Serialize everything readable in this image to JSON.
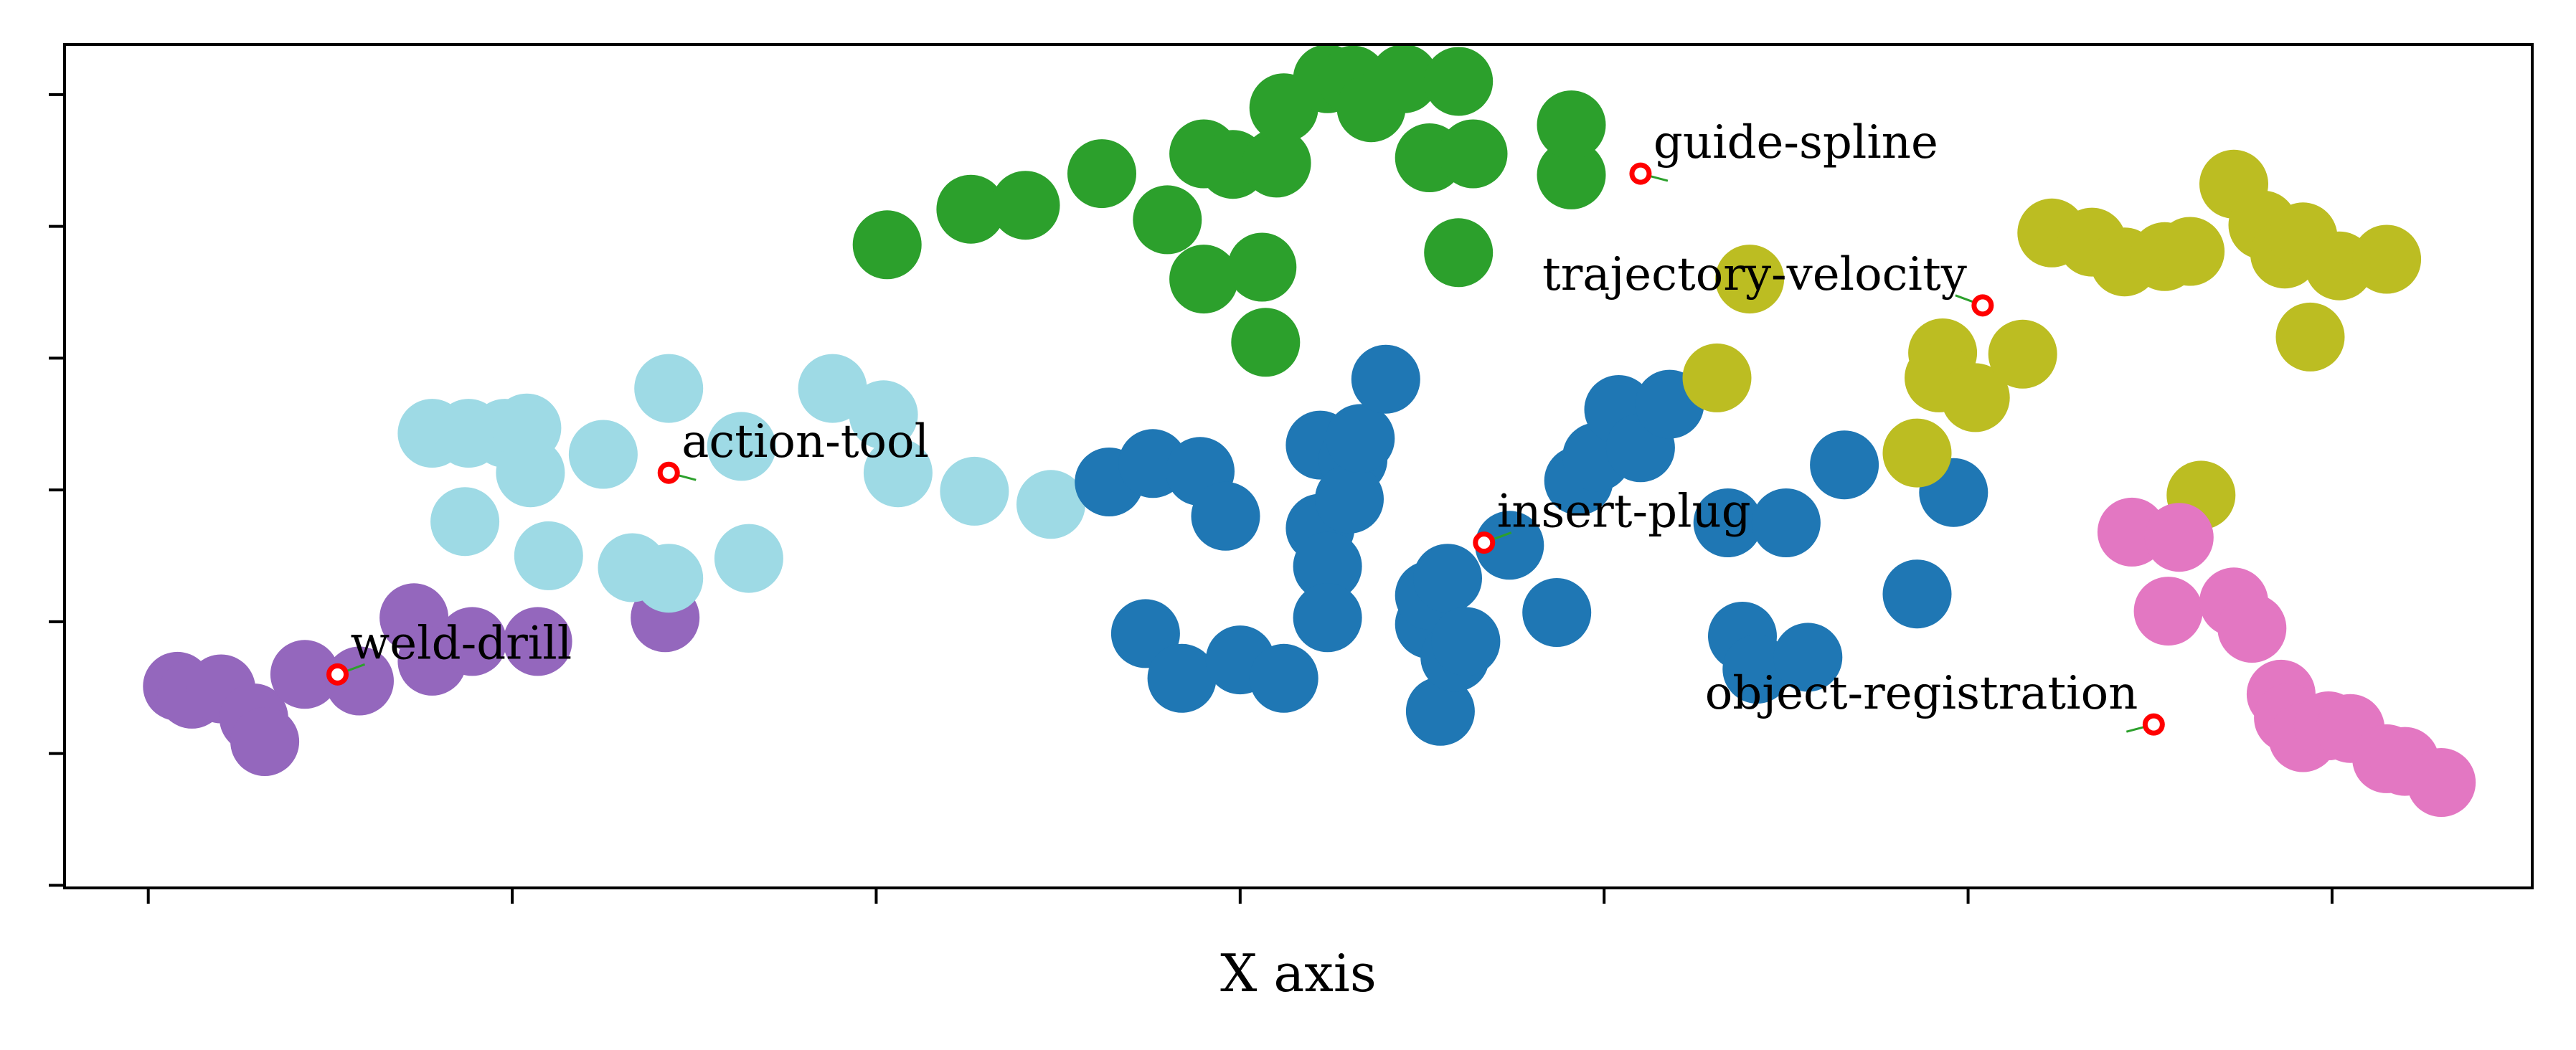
{
  "chart_data": {
    "type": "scatter",
    "title": "",
    "xlabel": "X axis",
    "ylabel": "",
    "xlim": [
      -0.23,
      6.55
    ],
    "ylim": [
      -0.02,
      6.38
    ],
    "x_ticks": [
      0,
      1,
      2,
      3,
      4,
      5,
      6
    ],
    "y_ticks": [
      0,
      1,
      2,
      3,
      4,
      5,
      6
    ],
    "tick_labels_shown": false,
    "grid": false,
    "legend": null,
    "series": [
      {
        "color": "#9467bd",
        "points": [
          [
            0.08,
            1.51
          ],
          [
            0.12,
            1.45
          ],
          [
            0.2,
            1.49
          ],
          [
            0.29,
            1.27
          ],
          [
            0.32,
            1.09
          ],
          [
            0.43,
            1.6
          ],
          [
            0.58,
            1.55
          ],
          [
            0.73,
            2.03
          ],
          [
            0.78,
            1.7
          ],
          [
            0.89,
            1.85
          ],
          [
            1.07,
            1.85
          ],
          [
            1.42,
            2.03
          ]
        ]
      },
      {
        "color": "#9edae5",
        "points": [
          [
            0.78,
            3.43
          ],
          [
            0.88,
            3.43
          ],
          [
            0.87,
            2.76
          ],
          [
            0.98,
            3.43
          ],
          [
            1.04,
            3.47
          ],
          [
            1.05,
            3.13
          ],
          [
            1.1,
            2.5
          ],
          [
            1.25,
            3.27
          ],
          [
            1.33,
            2.41
          ],
          [
            1.43,
            2.33
          ],
          [
            1.43,
            3.77
          ],
          [
            1.63,
            3.33
          ],
          [
            1.65,
            2.48
          ],
          [
            1.88,
            3.77
          ],
          [
            2.02,
            3.57
          ],
          [
            2.06,
            3.13
          ],
          [
            2.27,
            2.99
          ],
          [
            2.48,
            2.89
          ]
        ]
      },
      {
        "color": "#1f77b4",
        "points": [
          [
            2.64,
            3.06
          ],
          [
            2.74,
            1.91
          ],
          [
            2.76,
            3.2
          ],
          [
            2.84,
            1.57
          ],
          [
            2.89,
            3.14
          ],
          [
            2.96,
            2.8
          ],
          [
            3.0,
            1.71
          ],
          [
            3.12,
            1.57
          ],
          [
            3.22,
            3.34
          ],
          [
            3.22,
            2.71
          ],
          [
            3.24,
            2.42
          ],
          [
            3.24,
            2.03
          ],
          [
            3.31,
            3.23
          ],
          [
            3.3,
            2.93
          ],
          [
            3.33,
            3.39
          ],
          [
            3.4,
            3.84
          ],
          [
            3.52,
            1.98
          ],
          [
            3.52,
            2.2
          ],
          [
            3.57,
            2.33
          ],
          [
            3.55,
            1.32
          ],
          [
            3.59,
            1.73
          ],
          [
            3.62,
            1.85
          ],
          [
            3.74,
            2.58
          ],
          [
            3.87,
            2.07
          ],
          [
            3.93,
            3.07
          ],
          [
            3.98,
            3.25
          ],
          [
            4.04,
            3.61
          ],
          [
            4.1,
            3.32
          ],
          [
            4.18,
            3.65
          ],
          [
            4.34,
            2.75
          ],
          [
            4.38,
            1.89
          ],
          [
            4.42,
            1.64
          ],
          [
            4.5,
            2.75
          ],
          [
            4.56,
            1.73
          ],
          [
            4.66,
            3.19
          ],
          [
            4.86,
            2.21
          ],
          [
            4.96,
            2.98
          ]
        ]
      },
      {
        "color": "#2ca02c",
        "points": [
          [
            2.03,
            4.86
          ],
          [
            2.26,
            5.13
          ],
          [
            2.41,
            5.16
          ],
          [
            2.62,
            5.4
          ],
          [
            2.8,
            5.05
          ],
          [
            2.9,
            5.55
          ],
          [
            2.98,
            5.47
          ],
          [
            2.9,
            4.6
          ],
          [
            3.06,
            4.69
          ],
          [
            3.07,
            4.12
          ],
          [
            3.1,
            5.48
          ],
          [
            3.12,
            5.9
          ],
          [
            3.24,
            6.12
          ],
          [
            3.31,
            6.11
          ],
          [
            3.36,
            5.9
          ],
          [
            3.45,
            6.12
          ],
          [
            3.52,
            5.52
          ],
          [
            3.6,
            4.8
          ],
          [
            3.64,
            5.55
          ],
          [
            3.91,
            5.39
          ],
          [
            3.91,
            5.77
          ],
          [
            3.6,
            6.1
          ]
        ]
      },
      {
        "color": "#bcbd22",
        "points": [
          [
            4.31,
            3.85
          ],
          [
            4.4,
            4.6
          ],
          [
            4.86,
            3.28
          ],
          [
            4.93,
            4.04
          ],
          [
            4.92,
            3.85
          ],
          [
            5.02,
            3.7
          ],
          [
            5.15,
            4.03
          ],
          [
            5.23,
            4.95
          ],
          [
            5.34,
            4.88
          ],
          [
            5.43,
            4.73
          ],
          [
            5.54,
            4.77
          ],
          [
            5.61,
            4.81
          ],
          [
            5.64,
            2.96
          ],
          [
            5.73,
            5.32
          ],
          [
            5.81,
            5.01
          ],
          [
            5.87,
            4.79
          ],
          [
            5.92,
            4.92
          ],
          [
            5.94,
            4.16
          ],
          [
            6.02,
            4.7
          ],
          [
            6.15,
            4.75
          ]
        ]
      },
      {
        "color": "#e377c2",
        "points": [
          [
            5.45,
            2.68
          ],
          [
            5.58,
            2.64
          ],
          [
            5.55,
            2.08
          ],
          [
            5.73,
            2.15
          ],
          [
            5.78,
            1.95
          ],
          [
            5.86,
            1.45
          ],
          [
            5.88,
            1.27
          ],
          [
            5.92,
            1.12
          ],
          [
            5.99,
            1.21
          ],
          [
            6.05,
            1.19
          ],
          [
            6.15,
            0.96
          ],
          [
            6.2,
            0.94
          ],
          [
            6.3,
            0.78
          ]
        ]
      }
    ],
    "annotations": [
      {
        "text": "weld-drill",
        "x": 0.52,
        "y": 1.6
      },
      {
        "text": "action-tool",
        "x": 1.43,
        "y": 3.13
      },
      {
        "text": "insert-plug",
        "x": 3.67,
        "y": 2.6
      },
      {
        "text": "guide-spline",
        "x": 4.1,
        "y": 5.4
      },
      {
        "text": "trajectory-velocity",
        "x": 5.04,
        "y": 4.4
      },
      {
        "text": "object-registration",
        "x": 5.51,
        "y": 1.22
      }
    ],
    "marker_color": "#ff0000",
    "leader_color": "#2ca02c"
  }
}
